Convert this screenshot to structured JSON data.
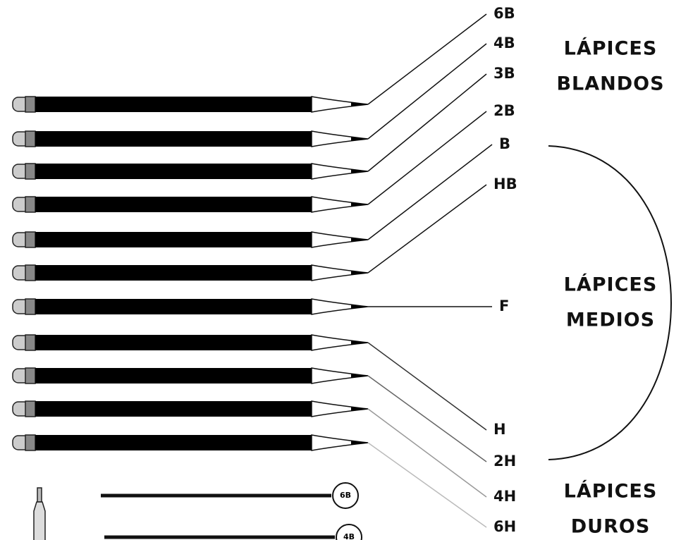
{
  "grades": [
    "6B",
    "4B",
    "3B",
    "2B",
    "B",
    "HB",
    "F",
    "H",
    "2H",
    "4H",
    "6H"
  ],
  "groups": [
    {
      "lines": [
        "LÁPICES",
        "BLANDOS"
      ]
    },
    {
      "lines": [
        "LÁPICES",
        "MEDIOS"
      ]
    },
    {
      "lines": [
        "LÁPICES",
        "DUROS"
      ]
    }
  ],
  "samples": [
    "6B",
    "4B"
  ]
}
